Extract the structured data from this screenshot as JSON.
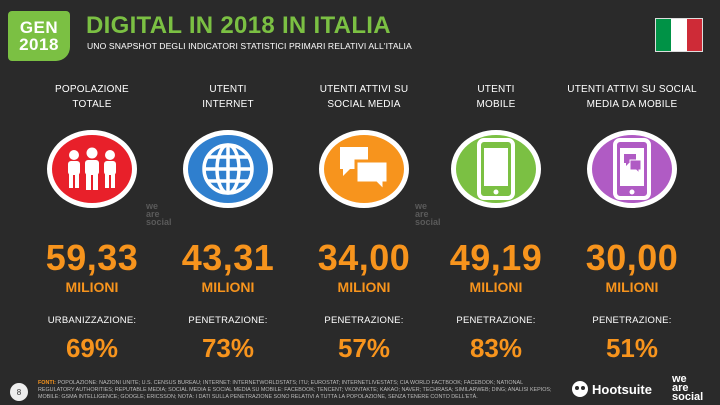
{
  "badge": {
    "line1": "GEN",
    "line2": "2018"
  },
  "header": {
    "title": "DIGITAL IN 2018 IN ITALIA",
    "subtitle": "UNO SNAPSHOT DEGLI INDICATORI STATISTICI PRIMARI RELATIVI ALL'ITALIA",
    "flag_colors": [
      "#009246",
      "#ffffff",
      "#ce2b37"
    ]
  },
  "columns": [
    {
      "label_line1": "POPOLAZIONE",
      "label_line2": "TOTALE",
      "icon": "people-icon",
      "color": "#e8202a",
      "value": "59,33",
      "unit": "MILIONI",
      "metric_label": "URBANIZZAZIONE:",
      "metric_value": "69%"
    },
    {
      "label_line1": "UTENTI",
      "label_line2": "INTERNET",
      "icon": "globe-icon",
      "color": "#2f7fce",
      "value": "43,31",
      "unit": "MILIONI",
      "metric_label": "PENETRAZIONE:",
      "metric_value": "73%"
    },
    {
      "label_line1": "UTENTI ATTIVI SU",
      "label_line2": "SOCIAL MEDIA",
      "icon": "chat-bubbles-icon",
      "color": "#f7941d",
      "value": "34,00",
      "unit": "MILIONI",
      "metric_label": "PENETRAZIONE:",
      "metric_value": "57%"
    },
    {
      "label_line1": "UTENTI",
      "label_line2": "MOBILE",
      "icon": "smartphone-icon",
      "color": "#7bc043",
      "value": "49,19",
      "unit": "MILIONI",
      "metric_label": "PENETRAZIONE:",
      "metric_value": "83%"
    },
    {
      "label_line1": "UTENTI ATTIVI SU SOCIAL",
      "label_line2": "MEDIA DA MOBILE",
      "icon": "mobile-social-icon",
      "color": "#b05bc4",
      "value": "30,00",
      "unit": "MILIONI",
      "metric_label": "PENETRAZIONE:",
      "metric_value": "51%"
    }
  ],
  "watermark": {
    "line1": "we",
    "line2": "are",
    "line3": "social"
  },
  "footer": {
    "page_number": "8",
    "sources_label": "FONTI:",
    "sources_text": "POPOLAZIONE: NAZIONI UNITE; U.S. CENSUS BUREAU; INTERNET: INTERNETWORLDSTATS; ITU; EUROSTAT; INTERNETLIVESTATS; CIA WORLD FACTBOOK; FACEBOOK; NATIONAL REGULATORY AUTHORITIES; REPUTABLE MEDIA; SOCIAL MEDIA E SOCIAL MEDIA SU MOBILE: FACEBOOK; TENCENT; VKONTAKTE; KAKAO; NAVER; TECHRASA; SIMILARWEB; DING; ANALISI KEPIOS; MOBILE: GSMA INTELLIGENCE; GOOGLE; ERICSSON; NOTA: I DATI SULLA PENETRAZIONE SONO RELATIVI A TUTTA LA POPOLAZIONE, SENZA TENERE CONTO DELL'ETÀ.",
    "hootsuite": "Hootsuite",
    "brand_line1": "we",
    "brand_line2": "are",
    "brand_line3": "social"
  }
}
